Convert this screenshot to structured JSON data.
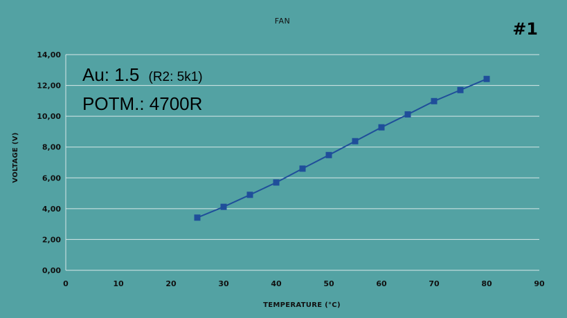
{
  "chart_data": {
    "type": "line",
    "title": "FAN",
    "badge": "#1",
    "xlabel": "TEMPERATURE (°C)",
    "ylabel": "VOLTAGE (V)",
    "xlim": [
      0,
      90
    ],
    "ylim": [
      0,
      14
    ],
    "xticks": [
      0,
      10,
      20,
      30,
      40,
      50,
      60,
      70,
      80,
      90
    ],
    "xtick_labels": [
      "0",
      "10",
      "20",
      "30",
      "40",
      "50",
      "60",
      "70",
      "80",
      "90"
    ],
    "yticks": [
      0,
      2,
      4,
      6,
      8,
      10,
      12,
      14
    ],
    "ytick_labels": [
      "0,00",
      "2,00",
      "4,00",
      "6,00",
      "8,00",
      "10,00",
      "12,00",
      "14,00"
    ],
    "grid": true,
    "series": [
      {
        "color": "#1f4e9a",
        "marker": "square",
        "x": [
          25,
          30,
          35,
          40,
          45,
          50,
          55,
          60,
          65,
          70,
          75,
          80
        ],
        "y": [
          3.42,
          4.12,
          4.9,
          5.7,
          6.6,
          7.48,
          8.38,
          9.28,
          10.12,
          10.98,
          11.7,
          12.42
        ]
      }
    ],
    "annotations": {
      "line1_main": "Au: 1.5",
      "line1_sub": "(R2: 5k1)",
      "line2": "POTM.: 4700R"
    }
  },
  "colors": {
    "background": "#53a2a3",
    "grid": "#d8e8e8",
    "series": "#1f4e9a"
  }
}
